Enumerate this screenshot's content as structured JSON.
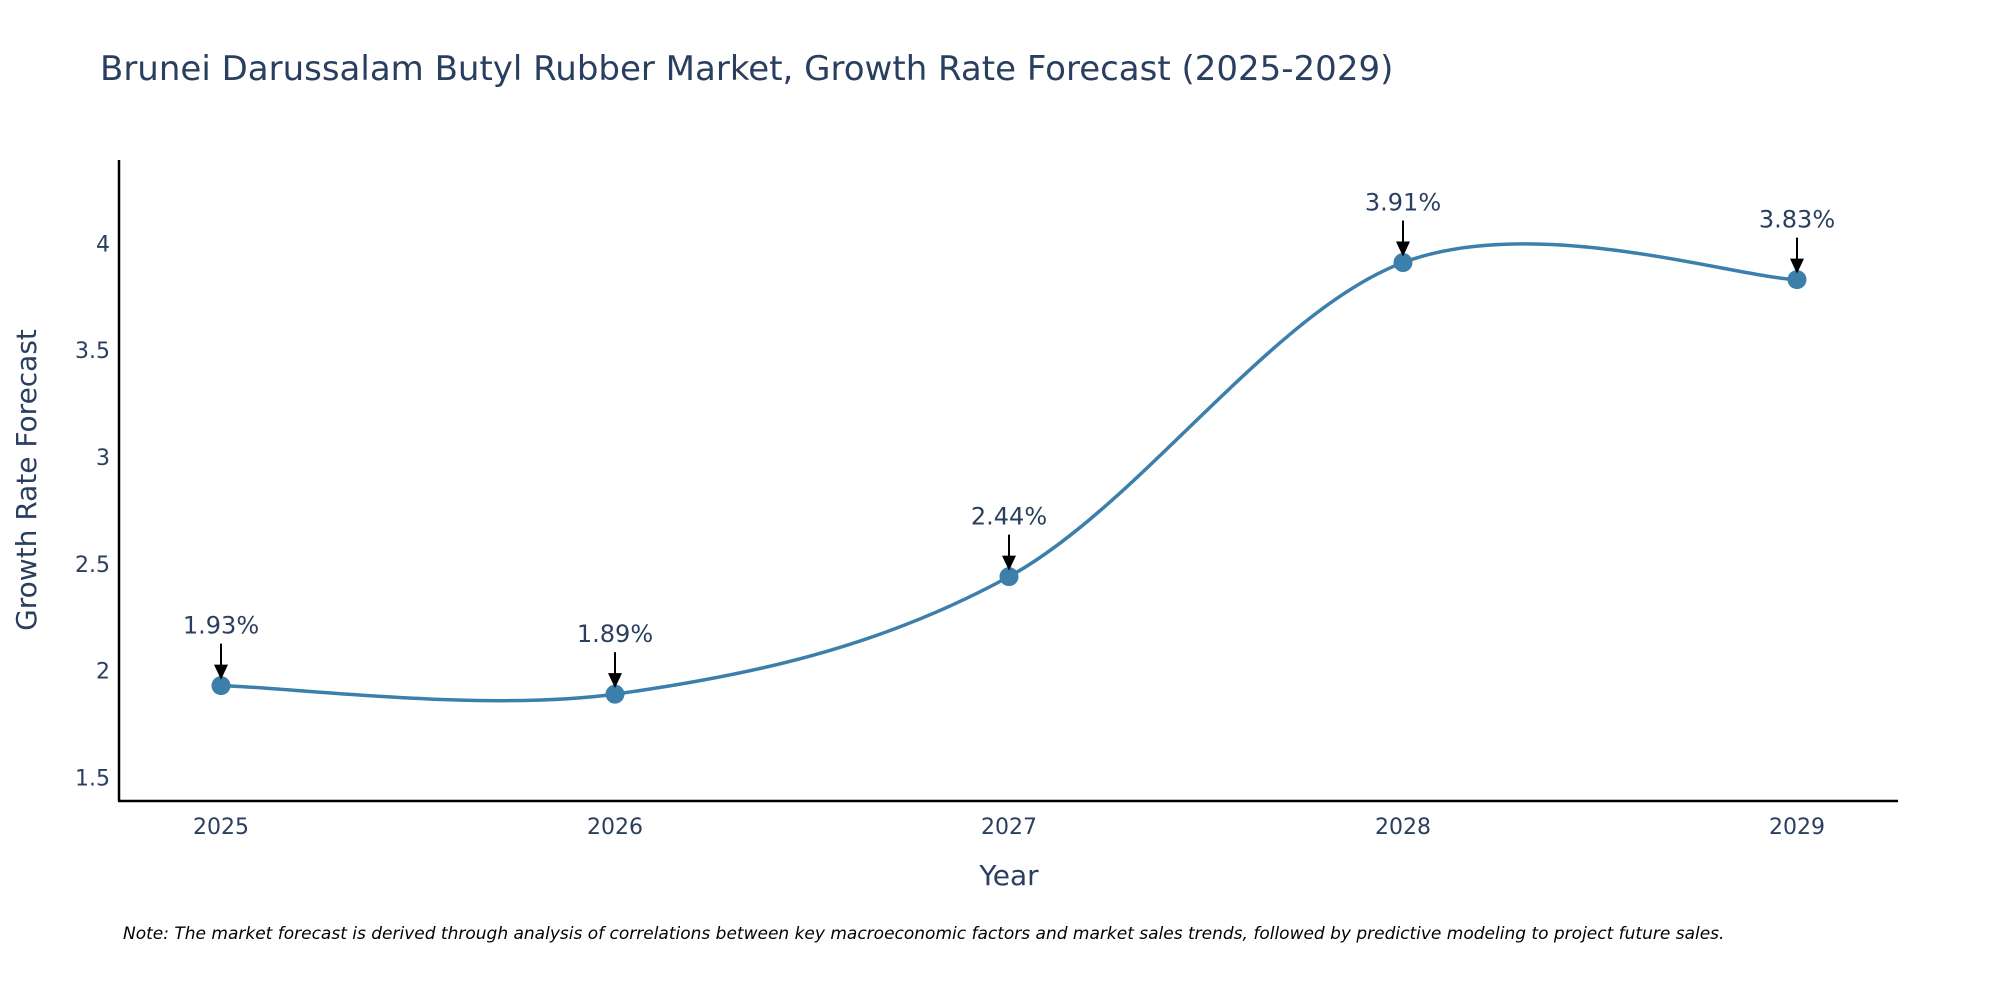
{
  "chart_data": {
    "type": "line",
    "title": "Brunei Darussalam Butyl Rubber Market, Growth Rate Forecast (2025-2029)",
    "xlabel": "Year",
    "ylabel": "Growth Rate Forecast",
    "categories": [
      "2025",
      "2026",
      "2027",
      "2028",
      "2029"
    ],
    "values": [
      1.93,
      1.89,
      2.44,
      3.91,
      3.83
    ],
    "data_labels": [
      "1.93%",
      "1.89%",
      "2.44%",
      "3.91%",
      "3.83%"
    ],
    "y_ticks": [
      1.5,
      2,
      2.5,
      3,
      3.5,
      4
    ],
    "y_tick_labels": [
      "1.5",
      "2",
      "2.5",
      "3",
      "3.5",
      "4"
    ],
    "ylim": [
      1.39,
      4.39
    ],
    "grid": false,
    "line_shape": "spline",
    "line_color": "#3d7fab",
    "marker_color": "#3d7fab",
    "note": "Note: The market forecast is derived through analysis of correlations between key macroeconomic factors and market sales trends, followed by predictive modeling to project future sales."
  }
}
